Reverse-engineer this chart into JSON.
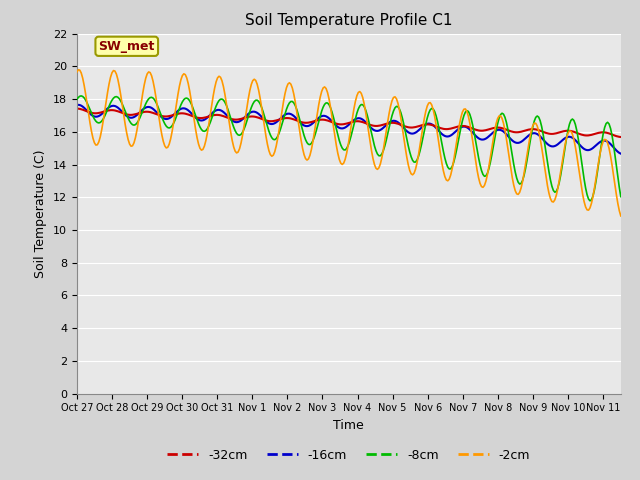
{
  "title": "Soil Temperature Profile C1",
  "xlabel": "Time",
  "ylabel": "Soil Temperature (C)",
  "annotation": "SW_met",
  "ylim": [
    0,
    22
  ],
  "yticks": [
    0,
    2,
    4,
    6,
    8,
    10,
    12,
    14,
    16,
    18,
    20,
    22
  ],
  "x_labels": [
    "Oct 27",
    "Oct 28",
    "Oct 29",
    "Oct 30",
    "Oct 31",
    "Nov 1",
    "Nov 2",
    "Nov 3",
    "Nov 4",
    "Nov 5",
    "Nov 6",
    "Nov 7",
    "Nov 8",
    "Nov 9",
    "Nov 10",
    "Nov 11"
  ],
  "colors": {
    "-32cm": "#cc0000",
    "-16cm": "#0000cc",
    "-8cm": "#00bb00",
    "-2cm": "#ff9900"
  },
  "fig_facecolor": "#d4d4d4",
  "plot_bg_color": "#e8e8e8",
  "grid_color": "#ffffff",
  "legend_labels": [
    "-32cm",
    "-16cm",
    "-8cm",
    "-2cm"
  ],
  "n_days": 15.5,
  "figsize": [
    6.4,
    4.8
  ],
  "dpi": 100
}
